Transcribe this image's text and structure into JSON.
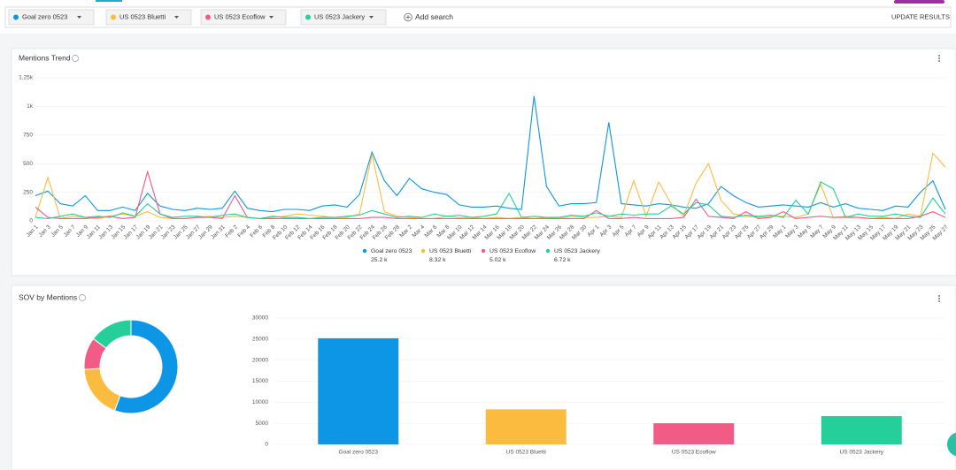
{
  "filters": [
    {
      "label": "Goal zero 0523",
      "color": "#0d96e6"
    },
    {
      "label": "US 0523 Bluetti",
      "color": "#fbbb3f"
    },
    {
      "label": "US 0523 Ecoflow",
      "color": "#f25b85"
    },
    {
      "label": "US 0523 Jackery",
      "color": "#25cf9a"
    }
  ],
  "add_search": "Add search",
  "update_results": "UPDATE RESULTS",
  "chart_data": [
    {
      "type": "line",
      "title": "Mentions Trend",
      "categories": [
        "Jan 1",
        "Jan 3",
        "Jan 5",
        "Jan 7",
        "Jan 9",
        "Jan 11",
        "Jan 13",
        "Jan 15",
        "Jan 17",
        "Jan 19",
        "Jan 21",
        "Jan 23",
        "Jan 25",
        "Jan 27",
        "Jan 29",
        "Jan 31",
        "Feb 2",
        "Feb 4",
        "Feb 6",
        "Feb 8",
        "Feb 10",
        "Feb 12",
        "Feb 14",
        "Feb 16",
        "Feb 18",
        "Feb 20",
        "Feb 22",
        "Feb 24",
        "Feb 26",
        "Feb 28",
        "Mar 2",
        "Mar 4",
        "Mar 6",
        "Mar 8",
        "Mar 10",
        "Mar 12",
        "Mar 14",
        "Mar 16",
        "Mar 18",
        "Mar 20",
        "Mar 22",
        "Mar 24",
        "Mar 26",
        "Mar 28",
        "Mar 30",
        "Apr 1",
        "Apr 3",
        "Apr 5",
        "Apr 7",
        "Apr 9",
        "Apr 11",
        "Apr 13",
        "Apr 15",
        "Apr 17",
        "Apr 19",
        "Apr 21",
        "Apr 23",
        "Apr 25",
        "Apr 27",
        "Apr 29",
        "May 1",
        "May 3",
        "May 5",
        "May 7",
        "May 9",
        "May 11",
        "May 13",
        "May 15",
        "May 17",
        "May 19",
        "May 21",
        "May 23",
        "May 25",
        "May 27"
      ],
      "ylim": [
        0,
        1250
      ],
      "yticks": [
        0,
        250,
        500,
        750,
        {
          "value": 1000,
          "label": "1k"
        },
        {
          "value": 1250,
          "label": "1.25k"
        }
      ],
      "series": [
        {
          "name": "Goal zero 0523",
          "color": "#0d96e6",
          "total": "25.2 k",
          "values": [
            220,
            260,
            150,
            130,
            220,
            90,
            90,
            120,
            90,
            240,
            130,
            100,
            90,
            110,
            100,
            110,
            260,
            110,
            90,
            80,
            100,
            100,
            90,
            130,
            140,
            120,
            230,
            600,
            350,
            220,
            370,
            280,
            250,
            230,
            140,
            120,
            120,
            130,
            110,
            100,
            1090,
            300,
            130,
            150,
            150,
            160,
            860,
            150,
            140,
            130,
            150,
            140,
            120,
            110,
            150,
            300,
            220,
            160,
            120,
            130,
            140,
            130,
            120,
            160,
            120,
            150,
            110,
            100,
            90,
            130,
            120,
            250,
            350,
            100
          ]
        },
        {
          "name": "US 0523 Bluetti",
          "color": "#fbbb3f",
          "total": "8.32 k",
          "values": [
            30,
            380,
            20,
            40,
            30,
            20,
            40,
            60,
            40,
            80,
            30,
            20,
            20,
            30,
            40,
            30,
            40,
            30,
            20,
            30,
            40,
            60,
            50,
            40,
            30,
            30,
            60,
            580,
            80,
            40,
            30,
            20,
            20,
            40,
            30,
            30,
            20,
            30,
            20,
            30,
            20,
            30,
            20,
            40,
            30,
            30,
            40,
            30,
            350,
            40,
            340,
            150,
            40,
            330,
            500,
            180,
            60,
            40,
            30,
            40,
            40,
            30,
            60,
            320,
            30,
            40,
            30,
            20,
            30,
            20,
            60,
            40,
            590,
            470
          ]
        },
        {
          "name": "US 0523 Ecoflow",
          "color": "#f25b85",
          "total": "5.02 k",
          "values": [
            120,
            30,
            20,
            20,
            20,
            30,
            40,
            20,
            30,
            430,
            60,
            20,
            20,
            30,
            30,
            20,
            220,
            30,
            20,
            20,
            20,
            20,
            20,
            20,
            20,
            20,
            20,
            30,
            30,
            20,
            20,
            20,
            20,
            20,
            20,
            20,
            20,
            20,
            20,
            20,
            20,
            20,
            20,
            20,
            20,
            90,
            20,
            20,
            30,
            20,
            20,
            20,
            30,
            190,
            40,
            30,
            20,
            80,
            20,
            30,
            80,
            20,
            30,
            40,
            30,
            30,
            30,
            20,
            20,
            20,
            20,
            40,
            80,
            30
          ]
        },
        {
          "name": "US 0523 Jackery",
          "color": "#25cf9a",
          "total": "6.72 k",
          "values": [
            30,
            20,
            40,
            60,
            30,
            40,
            30,
            70,
            40,
            150,
            60,
            30,
            40,
            40,
            30,
            50,
            60,
            30,
            20,
            40,
            30,
            30,
            20,
            30,
            30,
            40,
            50,
            90,
            60,
            30,
            40,
            30,
            60,
            40,
            50,
            30,
            40,
            60,
            240,
            30,
            40,
            30,
            30,
            50,
            40,
            70,
            40,
            60,
            50,
            60,
            60,
            130,
            60,
            160,
            140,
            40,
            30,
            50,
            40,
            50,
            30,
            180,
            60,
            340,
            280,
            30,
            60,
            40,
            40,
            60,
            40,
            30,
            200,
            60
          ]
        }
      ]
    },
    {
      "type": "pie",
      "title": "SOV by Mentions",
      "categories": [
        "Goal zero 0523",
        "US 0523 Bluetti",
        "US 0523 Ecoflow",
        "US 0523 Jackery"
      ],
      "values": [
        25200,
        8320,
        5020,
        6720
      ],
      "colors": [
        "#0d96e6",
        "#fbbb3f",
        "#f25b85",
        "#25cf9a"
      ]
    },
    {
      "type": "bar",
      "categories": [
        "Goal zero 0523",
        "US 0523 Bluetti",
        "US 0523 Ecoflow",
        "US 0523 Jackery"
      ],
      "values": [
        25200,
        8320,
        5020,
        6720
      ],
      "colors": [
        "#0d96e6",
        "#fbbb3f",
        "#f25b85",
        "#25cf9a"
      ],
      "ylim": [
        0,
        30000
      ],
      "yticks": [
        0,
        5000,
        10000,
        15000,
        20000,
        25000,
        30000
      ]
    }
  ]
}
